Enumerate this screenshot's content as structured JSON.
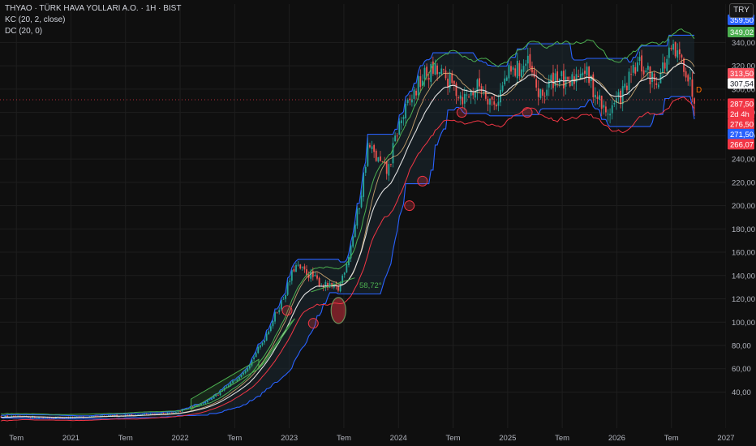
{
  "header": {
    "title": "THYAO · TÜRK HAVA YOLLARI A.O. · 1H · BIST",
    "indicator_kc": "KC (20, 2, close)",
    "indicator_dc": "DC (20, 0)"
  },
  "currency_button": "TRY",
  "price_badges": [
    {
      "label": "359,50",
      "price": 359.5,
      "color": "#2962ff",
      "text_color": "#ffffff"
    },
    {
      "label": "349,02",
      "price": 349.02,
      "color": "#4caf50",
      "text_color": "#ffffff"
    },
    {
      "label": "313,50",
      "price": 313.5,
      "color": "#f7525f",
      "text_color": "#ffffff"
    },
    {
      "label": "307,54",
      "price": 307.54,
      "color": "#ffffff",
      "text_color": "#131722"
    },
    {
      "label": "287,50",
      "price": 287.5,
      "color": "#f23645",
      "text_color": "#ffffff"
    },
    {
      "label": "2d 4h",
      "price": 280.5,
      "color": "#f23645",
      "text_color": "#ffffff"
    },
    {
      "label": "276,50",
      "price": 276.5,
      "color": "#f23645",
      "text_color": "#ffffff"
    },
    {
      "label": "271,50",
      "price": 271.5,
      "color": "#2962ff",
      "text_color": "#ffffff"
    },
    {
      "label": "266,07",
      "price": 266.07,
      "color": "#f23645",
      "text_color": "#ffffff"
    }
  ],
  "annotation_angle": "58,72°",
  "dividend_marker": "D",
  "colors": {
    "up": "#26a69a",
    "down": "#ef5350",
    "dc_line": "#2962ff",
    "kc_upper": "#4caf50",
    "kc_lower": "#f23645",
    "basis": "#e0e0e0",
    "ma": "#f0c080",
    "band_fill": "#1c2a33",
    "marker": "#f23645",
    "trend_box": "#4caf50",
    "dividend": "#ff6d00"
  },
  "chart_data": {
    "type": "candlestick",
    "title": "THYAO · TÜRK HAVA YOLLARI A.O. · 1H · BIST",
    "y_axis": {
      "ticks": [
        40,
        60,
        80,
        100,
        120,
        140,
        160,
        180,
        200,
        220,
        240,
        260,
        280,
        300,
        320,
        340
      ],
      "tick_labels": [
        "40,00",
        "60,00",
        "80,00",
        "100,00",
        "120,00",
        "140,00",
        "160,00",
        "180,00",
        "200,00",
        "220,00",
        "240,00",
        "260,00",
        "280,00",
        "300,00",
        "320,00",
        "340,00"
      ],
      "range": [
        9,
        373
      ]
    },
    "x_axis": {
      "range": [
        2020.35,
        2027.0
      ],
      "ticks": [
        2020.5,
        2021.0,
        2021.5,
        2022.0,
        2022.5,
        2023.0,
        2023.5,
        2024.0,
        2024.5,
        2025.0,
        2025.5,
        2026.0,
        2026.5,
        2027.0
      ],
      "tick_labels": [
        "Tem",
        "2021",
        "Tem",
        "2022",
        "Tem",
        "2023",
        "Tem",
        "2024",
        "Tem",
        "2025",
        "Tem",
        "2026",
        "Tem",
        "2027"
      ]
    },
    "price_path": [
      [
        2020.35,
        19
      ],
      [
        2021.0,
        18
      ],
      [
        2021.5,
        20
      ],
      [
        2021.95,
        22
      ],
      [
        2022.2,
        30
      ],
      [
        2022.35,
        38
      ],
      [
        2022.5,
        50
      ],
      [
        2022.62,
        62
      ],
      [
        2022.75,
        82
      ],
      [
        2022.85,
        102
      ],
      [
        2022.95,
        122
      ],
      [
        2023.05,
        148
      ],
      [
        2023.2,
        140
      ],
      [
        2023.3,
        132
      ],
      [
        2023.45,
        128
      ],
      [
        2023.55,
        160
      ],
      [
        2023.65,
        205
      ],
      [
        2023.72,
        252
      ],
      [
        2023.8,
        240
      ],
      [
        2023.9,
        228
      ],
      [
        2024.0,
        268
      ],
      [
        2024.12,
        292
      ],
      [
        2024.22,
        310
      ],
      [
        2024.32,
        316
      ],
      [
        2024.45,
        308
      ],
      [
        2024.6,
        292
      ],
      [
        2024.75,
        304
      ],
      [
        2024.88,
        286
      ],
      [
        2025.0,
        312
      ],
      [
        2025.08,
        316
      ],
      [
        2025.18,
        322
      ],
      [
        2025.3,
        292
      ],
      [
        2025.45,
        314
      ],
      [
        2025.55,
        300
      ],
      [
        2025.68,
        320
      ],
      [
        2025.8,
        298
      ],
      [
        2025.9,
        278
      ],
      [
        2026.05,
        296
      ],
      [
        2026.2,
        322
      ],
      [
        2026.35,
        306
      ],
      [
        2026.5,
        332
      ],
      [
        2026.62,
        322
      ],
      [
        2026.72,
        287.5
      ]
    ],
    "markers": [
      {
        "x": 2022.98,
        "price": 110
      },
      {
        "x": 2023.22,
        "price": 99
      },
      {
        "x": 2024.1,
        "price": 200
      },
      {
        "x": 2024.22,
        "price": 221
      },
      {
        "x": 2024.58,
        "price": 280
      },
      {
        "x": 2025.18,
        "price": 280
      }
    ],
    "ellipse": {
      "x": 2023.45,
      "price": 110
    },
    "trend_angle_label": "58,72°",
    "last_price": 287.5
  }
}
